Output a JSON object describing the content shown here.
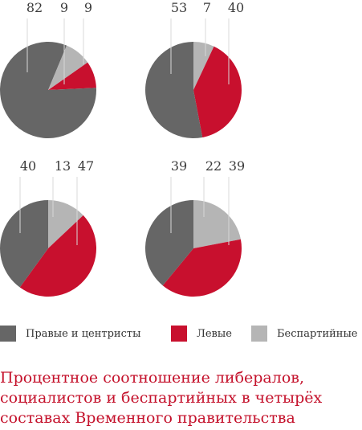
{
  "chart_data": [
    {
      "type": "pie",
      "categories": [
        "Правые и центристы",
        "Левые",
        "Беспартийные"
      ],
      "values": [
        82,
        9,
        9
      ]
    },
    {
      "type": "pie",
      "categories": [
        "Правые и центристы",
        "Левые",
        "Беспартийные"
      ],
      "values": [
        53,
        40,
        7
      ]
    },
    {
      "type": "pie",
      "categories": [
        "Правые и центристы",
        "Левые",
        "Беспартийные"
      ],
      "values": [
        40,
        47,
        13
      ]
    },
    {
      "type": "pie",
      "categories": [
        "Правые и центристы",
        "Левые",
        "Беспартийные"
      ],
      "values": [
        39,
        39,
        22
      ]
    }
  ],
  "colors": {
    "right_center": "#666666",
    "left": "#c8102e",
    "nonpartisan": "#b5b5b5"
  },
  "legend": {
    "right_center": "Правые и центристы",
    "left": "Левые",
    "nonpartisan": "Беспартийные"
  },
  "caption": {
    "line1": "Процентное соотношение либералов,",
    "line2": "социалистов и беспартийных в четырёх",
    "line3": "составах Временного правительства"
  }
}
